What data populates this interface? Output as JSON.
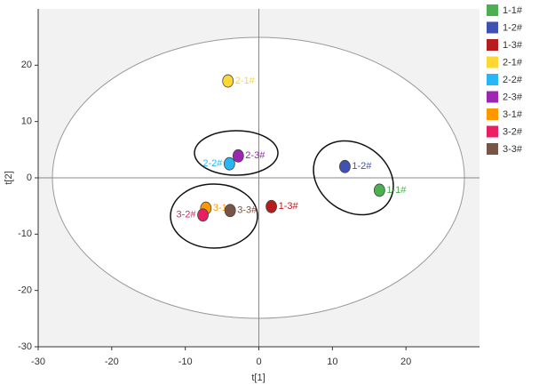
{
  "chart_data": {
    "type": "scatter",
    "xlabel": "t[1]",
    "ylabel": "t[2]",
    "xlim": [
      -30,
      30
    ],
    "ylim": [
      -30,
      30
    ],
    "xticks": [
      -30,
      -20,
      -10,
      0,
      10,
      20
    ],
    "yticks": [
      -30,
      -20,
      -10,
      0,
      10,
      20
    ],
    "legend": "right",
    "series": [
      {
        "name": "1-1#",
        "color": "#4caf50",
        "x": [
          16.4
        ],
        "values": [
          -2.2
        ]
      },
      {
        "name": "1-2#",
        "color": "#3f51b5",
        "x": [
          11.7
        ],
        "values": [
          2.0
        ]
      },
      {
        "name": "1-3#",
        "color": "#b71c1c",
        "x": [
          1.7
        ],
        "values": [
          -5.1
        ]
      },
      {
        "name": "2-1#",
        "color": "#fdd835",
        "x": [
          -4.2
        ],
        "values": [
          17.2
        ]
      },
      {
        "name": "2-2#",
        "color": "#29b6f6",
        "x": [
          -4.0
        ],
        "values": [
          2.5
        ]
      },
      {
        "name": "2-3#",
        "color": "#9c27b0",
        "x": [
          -2.8
        ],
        "values": [
          3.9
        ]
      },
      {
        "name": "3-1#",
        "color": "#ff9800",
        "x": [
          -7.2
        ],
        "values": [
          -5.4
        ]
      },
      {
        "name": "3-2#",
        "color": "#e91e63",
        "x": [
          -7.6
        ],
        "values": [
          -6.6
        ]
      },
      {
        "name": "3-3#",
        "color": "#795548",
        "x": [
          -3.9
        ],
        "values": [
          -5.8
        ]
      }
    ]
  }
}
